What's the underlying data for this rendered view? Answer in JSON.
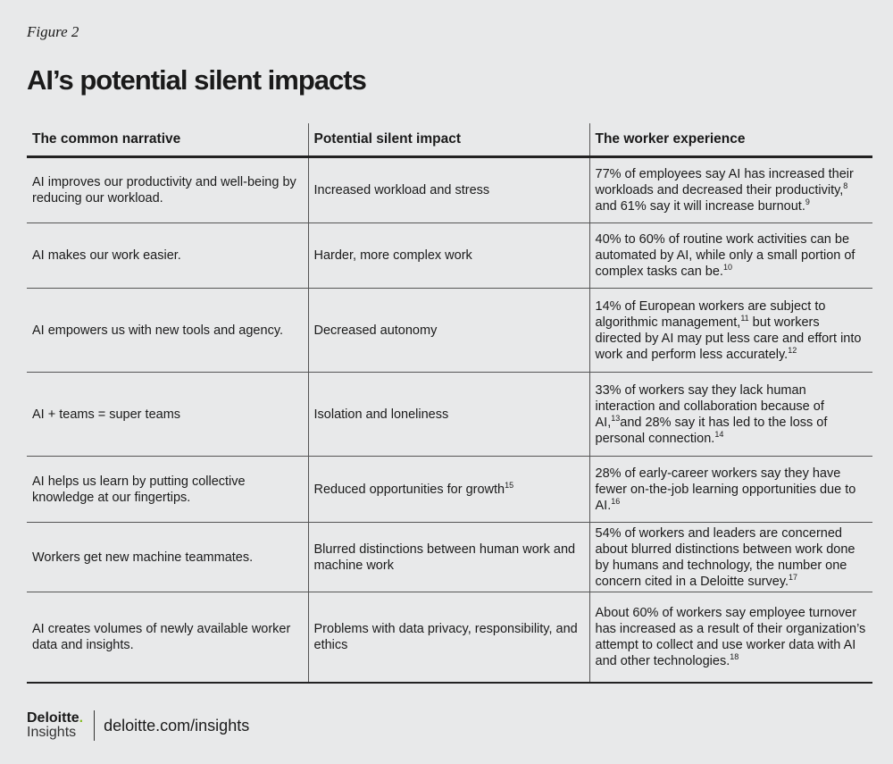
{
  "figure_label": "Figure 2",
  "title": "AI’s potential silent impacts",
  "table": {
    "headers": [
      "The common narrative",
      "Potential silent impact",
      "The worker experience"
    ],
    "rows": [
      {
        "h": 77,
        "cells": [
          [
            {
              "t": "AI improves our productivity and well-being by reducing our workload."
            }
          ],
          [
            {
              "t": "Increased workload and stress"
            }
          ],
          [
            {
              "t": "77% of employees say AI has increased their workloads and decreased their productivity,"
            },
            {
              "s": "8"
            },
            {
              "t": " and 61% say it will increase burnout."
            },
            {
              "s": "9"
            }
          ]
        ]
      },
      {
        "h": 73,
        "cells": [
          [
            {
              "t": "AI makes our work easier."
            }
          ],
          [
            {
              "t": "Harder, more complex work"
            }
          ],
          [
            {
              "t": "40% to 60% of routine work activities can be automated by AI, while only a small portion of complex tasks can be."
            },
            {
              "s": "10"
            }
          ]
        ]
      },
      {
        "h": 94,
        "cells": [
          [
            {
              "t": "AI empowers us with new tools and agency."
            }
          ],
          [
            {
              "t": "Decreased autonomy"
            }
          ],
          [
            {
              "t": "14% of European workers are subject to algorithmic management,"
            },
            {
              "s": "11"
            },
            {
              "t": " but workers directed by AI may put less care and effort into work and perform less accurately."
            },
            {
              "s": "12"
            }
          ]
        ]
      },
      {
        "h": 94,
        "cells": [
          [
            {
              "t": "AI + teams = super teams"
            }
          ],
          [
            {
              "t": "Isolation and loneliness"
            }
          ],
          [
            {
              "t": "33% of workers say they lack human interaction and collaboration because of AI,"
            },
            {
              "s": "13"
            },
            {
              "t": "and 28% say it has led to the loss of personal connection."
            },
            {
              "s": "14"
            }
          ]
        ]
      },
      {
        "h": 74,
        "cells": [
          [
            {
              "t": "AI helps us learn by putting collective knowledge at our fingertips."
            }
          ],
          [
            {
              "t": "Reduced opportunities for growth"
            },
            {
              "s": "15"
            }
          ],
          [
            {
              "t": "28% of early-career workers say they have fewer on-the-job learning opportunities due to AI."
            },
            {
              "s": "16"
            }
          ]
        ]
      },
      {
        "h": 78,
        "cells": [
          [
            {
              "t": "Workers get new machine teammates."
            }
          ],
          [
            {
              "t": "Blurred distinctions between human work and machine work"
            }
          ],
          [
            {
              "t": "54% of workers and leaders are concerned about blurred distinctions between work done by humans and technology, the number one concern cited in a Deloitte survey."
            },
            {
              "s": "17"
            }
          ]
        ]
      },
      {
        "h": 101,
        "cells": [
          [
            {
              "t": "AI creates volumes of newly available worker data and insights."
            }
          ],
          [
            {
              "t": "Problems with data privacy, responsibility, and ethics"
            }
          ],
          [
            {
              "t": "About 60% of workers say employee turnover has increased as a result of their organization’s attempt to collect and use worker data with AI and other technologies."
            },
            {
              "s": "18"
            }
          ]
        ]
      }
    ]
  },
  "footer": {
    "brand": "Deloitte",
    "brand_sub": "Insights",
    "url": "deloitte.com/insights",
    "accent": "#86bc25"
  }
}
